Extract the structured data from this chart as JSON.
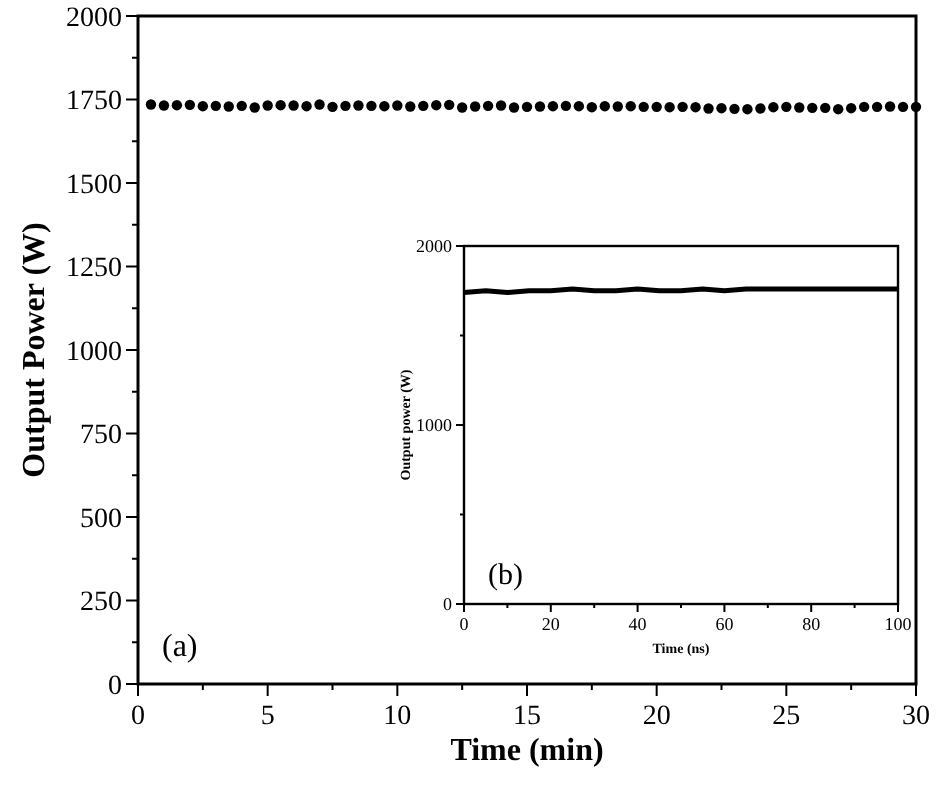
{
  "chart_data": [
    {
      "type": "scatter",
      "xlabel": "Time (min)",
      "ylabel": "Output Power (W)",
      "annotations": [
        "(a)"
      ],
      "marker": "circle",
      "color": "#000000",
      "x": [
        0.5,
        1,
        1.5,
        2,
        2.5,
        3,
        3.5,
        4,
        4.5,
        5,
        5.5,
        6,
        6.5,
        7,
        7.5,
        8,
        8.5,
        9,
        9.5,
        10,
        10.5,
        11,
        11.5,
        12,
        12.5,
        13,
        13.5,
        14,
        14.5,
        15,
        15.5,
        16,
        16.5,
        17,
        17.5,
        18,
        18.5,
        19,
        19.5,
        20,
        20.5,
        21,
        21.5,
        22,
        22.5,
        23,
        23.5,
        24,
        24.5,
        25,
        25.5,
        26,
        26.5,
        27,
        27.5,
        28,
        28.5,
        29,
        29.5,
        30
      ],
      "values": [
        1735,
        1732,
        1733,
        1734,
        1730,
        1731,
        1729,
        1731,
        1726,
        1732,
        1733,
        1732,
        1730,
        1735,
        1728,
        1731,
        1732,
        1731,
        1730,
        1732,
        1729,
        1731,
        1733,
        1734,
        1726,
        1729,
        1731,
        1732,
        1726,
        1728,
        1729,
        1730,
        1731,
        1730,
        1727,
        1730,
        1729,
        1730,
        1728,
        1728,
        1727,
        1728,
        1727,
        1723,
        1724,
        1722,
        1721,
        1723,
        1727,
        1728,
        1726,
        1725,
        1725,
        1721,
        1724,
        1728,
        1728,
        1729,
        1728,
        1728
      ],
      "xlim": [
        0,
        30
      ],
      "ylim": [
        0,
        2000
      ],
      "xticks": [
        0,
        {
          "value": 2.5,
          "label": null
        },
        5,
        {
          "value": 7.5,
          "label": null
        },
        10,
        {
          "value": 12.5,
          "label": null
        },
        15,
        {
          "value": 17.5,
          "label": null
        },
        20,
        {
          "value": 22.5,
          "label": null
        },
        25,
        {
          "value": 27.5,
          "label": null
        },
        30
      ],
      "yticks": [
        0,
        {
          "value": 125,
          "label": null
        },
        250,
        {
          "value": 375,
          "label": null
        },
        500,
        {
          "value": 625,
          "label": null
        },
        750,
        {
          "value": 875,
          "label": null
        },
        1000,
        {
          "value": 1125,
          "label": null
        },
        1250,
        {
          "value": 1375,
          "label": null
        },
        1500,
        {
          "value": 1625,
          "label": null
        },
        1750,
        {
          "value": 1875,
          "label": null
        },
        2000
      ]
    },
    {
      "type": "line",
      "xlabel": "Time (ns)",
      "ylabel": "Output power (W)",
      "annotations": [
        "(b)"
      ],
      "marker": "none",
      "color": "#000000",
      "x": [
        0,
        5,
        10,
        15,
        20,
        25,
        30,
        35,
        40,
        45,
        50,
        55,
        60,
        65,
        70,
        75,
        80,
        85,
        90,
        95,
        100
      ],
      "values": [
        1740,
        1750,
        1740,
        1750,
        1750,
        1760,
        1750,
        1750,
        1760,
        1750,
        1750,
        1760,
        1750,
        1760,
        1760,
        1760,
        1760,
        1760,
        1760,
        1760,
        1760
      ],
      "xlim": [
        0,
        100
      ],
      "ylim": [
        0,
        2000
      ],
      "xticks": [
        0,
        {
          "value": 10,
          "label": null
        },
        20,
        {
          "value": 30,
          "label": null
        },
        40,
        {
          "value": 50,
          "label": null
        },
        60,
        {
          "value": 70,
          "label": null
        },
        80,
        {
          "value": 90,
          "label": null
        },
        100
      ],
      "yticks": [
        0,
        {
          "value": 500,
          "label": null
        },
        1000,
        {
          "value": 1500,
          "label": null
        },
        2000
      ]
    }
  ]
}
